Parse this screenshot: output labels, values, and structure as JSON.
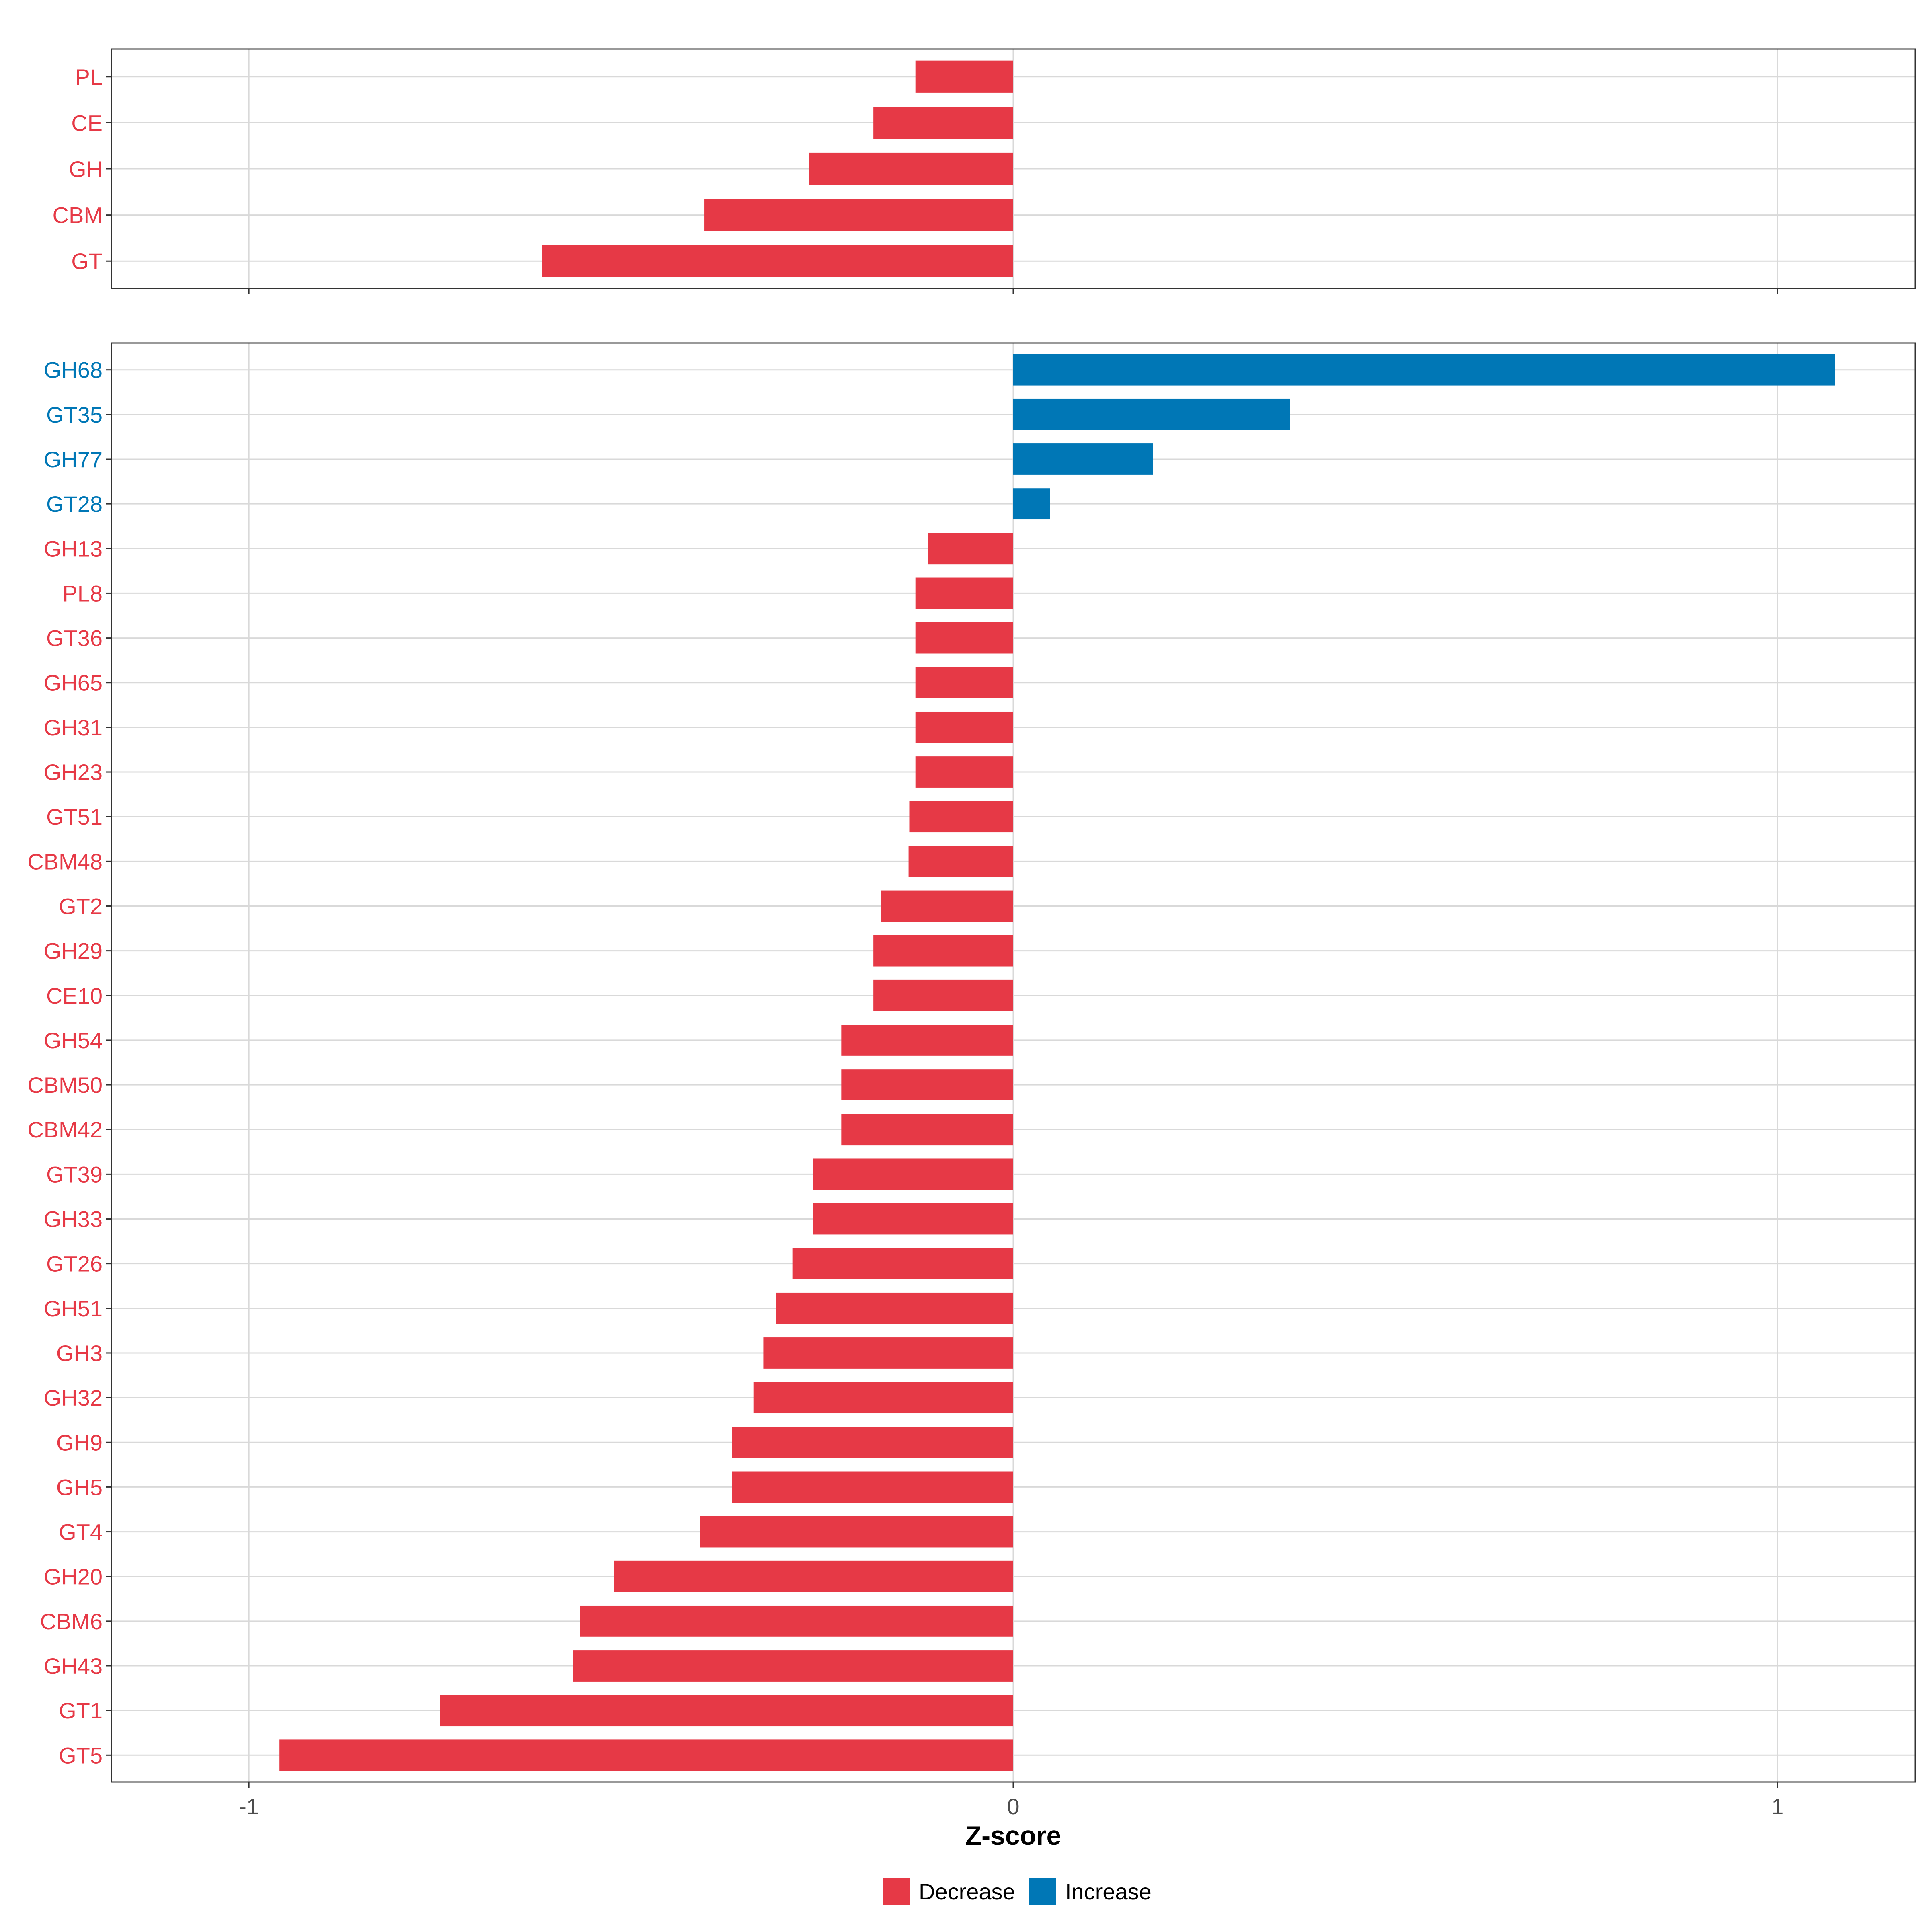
{
  "colors": {
    "decrease": "#E63946",
    "increase": "#0077B6",
    "grid": "#D9D9D9",
    "panel_border": "#333333",
    "axis_text": "#4D4D4D",
    "title_text": "#000000"
  },
  "chart_data": [
    {
      "type": "bar",
      "orientation": "horizontal",
      "panel": "top",
      "categories": [
        "PL",
        "CE",
        "GH",
        "CBM",
        "GT"
      ],
      "values": [
        -0.128,
        -0.183,
        -0.267,
        -0.404,
        -0.617
      ],
      "xlim": [
        -1.18,
        1.18
      ],
      "xticks": [
        -1,
        0,
        1
      ],
      "grid": true
    },
    {
      "type": "bar",
      "orientation": "horizontal",
      "panel": "bottom",
      "categories": [
        "GH68",
        "GT35",
        "GH77",
        "GT28",
        "GH13",
        "PL8",
        "GT36",
        "GH65",
        "GH31",
        "GH23",
        "GT51",
        "CBM48",
        "GT2",
        "GH29",
        "CE10",
        "GH54",
        "CBM50",
        "CBM42",
        "GT39",
        "GH33",
        "GT26",
        "GH51",
        "GH3",
        "GH32",
        "GH9",
        "GH5",
        "GT4",
        "GH20",
        "CBM6",
        "GH43",
        "GT1",
        "GT5"
      ],
      "values": [
        1.075,
        0.362,
        0.183,
        0.048,
        -0.112,
        -0.128,
        -0.128,
        -0.128,
        -0.128,
        -0.128,
        -0.136,
        -0.137,
        -0.173,
        -0.183,
        -0.183,
        -0.225,
        -0.225,
        -0.225,
        -0.262,
        -0.262,
        -0.289,
        -0.31,
        -0.327,
        -0.34,
        -0.368,
        -0.368,
        -0.41,
        -0.522,
        -0.567,
        -0.576,
        -0.75,
        -0.96
      ],
      "xlim": [
        -1.18,
        1.18
      ],
      "xticks": [
        -1,
        0,
        1
      ],
      "xlabel": "Z-score",
      "grid": true
    }
  ],
  "legend": {
    "items": [
      {
        "label": "Decrease",
        "color_key": "decrease"
      },
      {
        "label": "Increase",
        "color_key": "increase"
      }
    ],
    "position": "bottom-center"
  }
}
